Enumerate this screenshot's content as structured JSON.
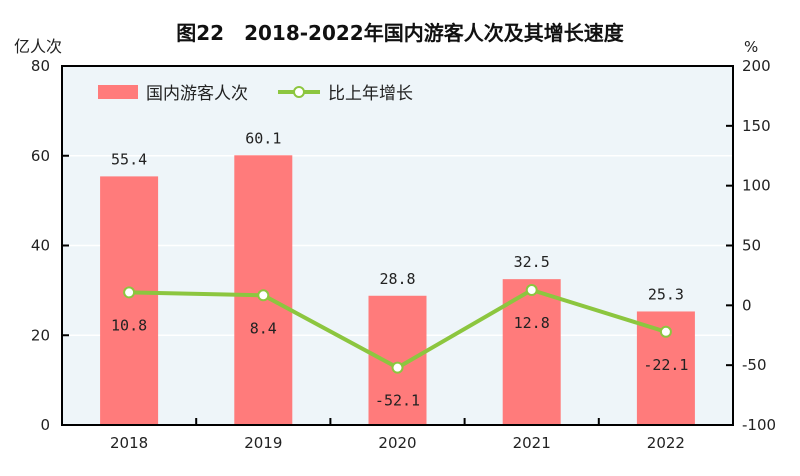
{
  "chart_data": {
    "type": "bar+line",
    "title": "图22　2018-2022年国内游客人次及其增长速度",
    "ylabel_left": "亿人次",
    "ylabel_right": "%",
    "categories": [
      "2018",
      "2019",
      "2020",
      "2021",
      "2022"
    ],
    "ylim_left": [
      0,
      80
    ],
    "yticks_left": [
      0,
      20,
      40,
      60,
      80
    ],
    "ylim_right": [
      -100,
      200
    ],
    "yticks_right": [
      -100,
      -50,
      0,
      50,
      100,
      150,
      200
    ],
    "grid": true,
    "legend_placement": "top-left",
    "series": [
      {
        "name": "国内游客人次",
        "type": "bar",
        "axis": "left",
        "color": "#ff7b7b",
        "values": [
          55.4,
          60.1,
          28.8,
          32.5,
          25.3
        ],
        "labels": [
          "55.4",
          "60.1",
          "28.8",
          "32.5",
          "25.3"
        ]
      },
      {
        "name": "比上年增长",
        "type": "line",
        "axis": "right",
        "color": "#8cc63f",
        "values": [
          10.8,
          8.4,
          -52.1,
          12.8,
          -22.1
        ],
        "labels": [
          "10.8",
          "8.4",
          "-52.1",
          "12.8",
          "-22.1"
        ]
      }
    ],
    "colors": {
      "plot_background": "#eef5f9",
      "axis": "#000000"
    }
  }
}
